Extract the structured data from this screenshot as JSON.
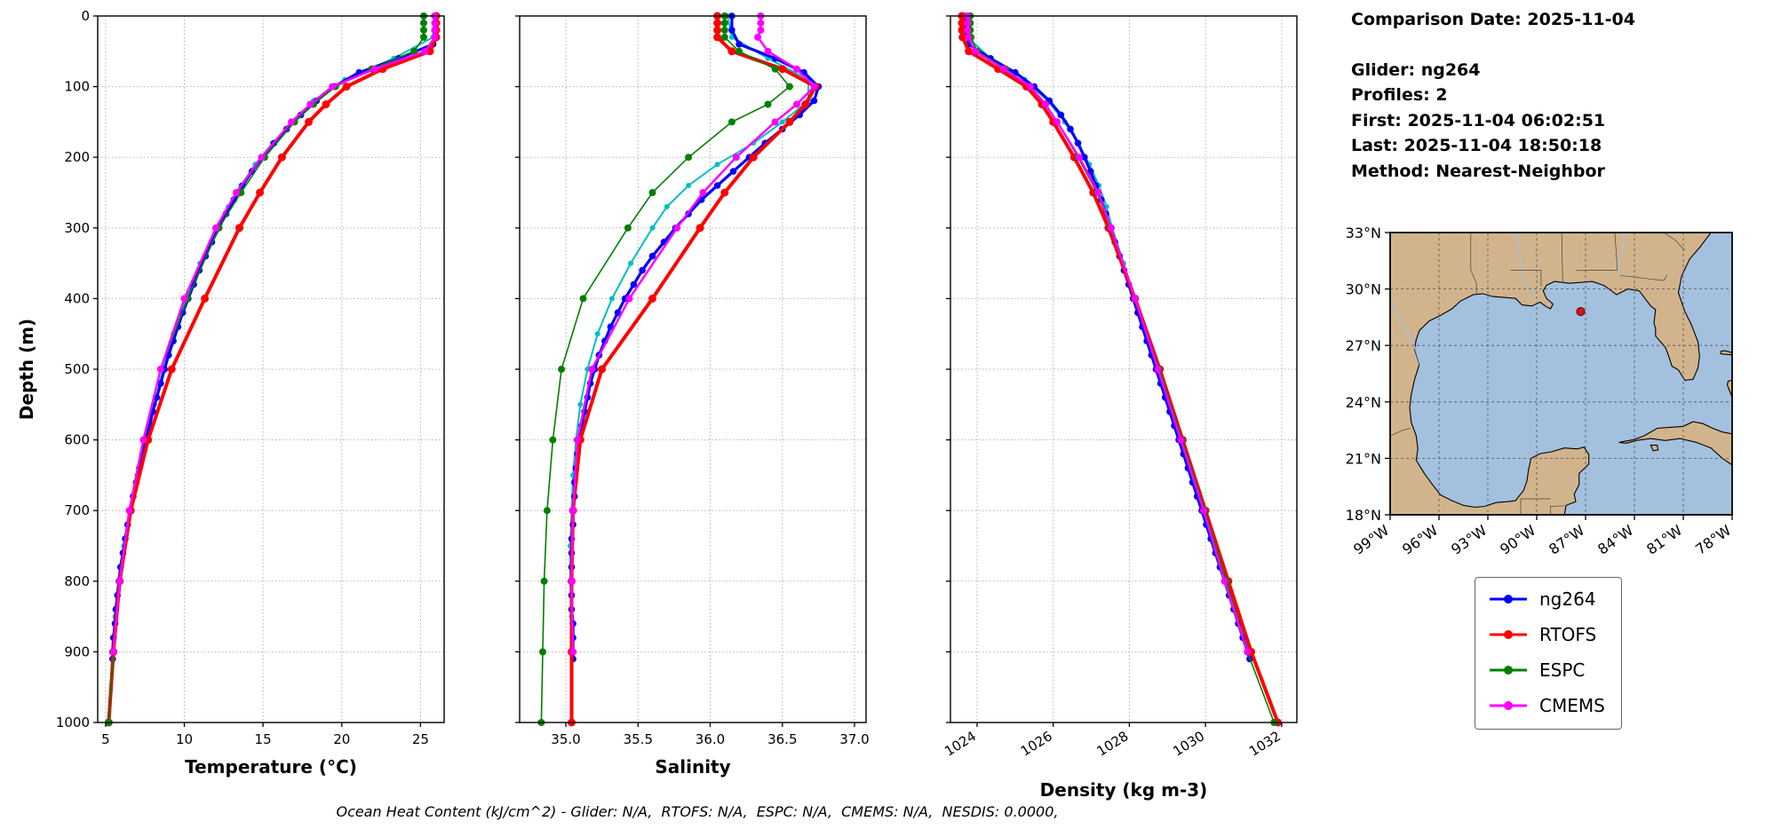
{
  "header": {
    "comparison_date": "Comparison Date: 2025-11-04",
    "glider": "Glider: ng264",
    "profiles": "Profiles: 2",
    "first": "First: 2025-11-04 06:02:51",
    "last": "Last: 2025-11-04 18:50:18",
    "method": "Method: Nearest-Neighbor"
  },
  "caption": "Ocean Heat Content (kJ/cm^2) - Glider: N/A,  RTOFS: N/A,  ESPC: N/A,  CMEMS: N/A,  NESDIS: 0.0000,",
  "legend": {
    "items": [
      {
        "label": "ng264",
        "color": "#0000ff"
      },
      {
        "label": "RTOFS",
        "color": "#ff0000"
      },
      {
        "label": "ESPC",
        "color": "#008000"
      },
      {
        "label": "CMEMS",
        "color": "#ff00ff"
      }
    ]
  },
  "map": {
    "extent": {
      "lon_min": -99,
      "lon_max": -78,
      "lat_min": 18,
      "lat_max": 33
    },
    "lon_ticks": [
      -99,
      -96,
      -93,
      -90,
      -87,
      -84,
      -81,
      -78
    ],
    "lon_labels": [
      "99°W",
      "96°W",
      "93°W",
      "90°W",
      "87°W",
      "84°W",
      "81°W",
      "78°W"
    ],
    "lat_ticks": [
      33,
      30,
      27,
      24,
      21,
      18
    ],
    "lat_labels": [
      "33°N",
      "30°N",
      "27°N",
      "24°N",
      "21°N",
      "18°N"
    ],
    "marker": {
      "lon": -87.3,
      "lat": 28.8,
      "color": "#dd1111"
    },
    "land_color": "#d2b48c",
    "ocean_color": "#a3c0de"
  },
  "chart_data": {
    "type": "line",
    "depth_axis": {
      "label": "Depth (m)",
      "lim": [
        0,
        1000
      ],
      "ticks": [
        0,
        100,
        200,
        300,
        400,
        500,
        600,
        700,
        800,
        900,
        1000
      ]
    },
    "panels": [
      {
        "xlabel": "Temperature (°C)",
        "key": "temperature",
        "xlim": [
          4.5,
          26.5
        ],
        "xticks": [
          5,
          10,
          15,
          20,
          25
        ],
        "xtick_labels": [
          "5",
          "10",
          "15",
          "20",
          "25"
        ],
        "rotate_xticklabels": false,
        "show_ytick_labels": true
      },
      {
        "xlabel": "Salinity",
        "key": "salinity",
        "xlim": [
          34.68,
          37.08
        ],
        "xticks": [
          35.0,
          35.5,
          36.0,
          36.5,
          37.0
        ],
        "xtick_labels": [
          "35.0",
          "35.5",
          "36.0",
          "36.5",
          "37.0"
        ],
        "rotate_xticklabels": false,
        "show_ytick_labels": false
      },
      {
        "xlabel": "Density (kg m-3)",
        "key": "density",
        "xlim": [
          1023.3,
          1032.4
        ],
        "xticks": [
          1024,
          1026,
          1028,
          1030,
          1032
        ],
        "xtick_labels": [
          "1024",
          "1026",
          "1028",
          "1030",
          "1032"
        ],
        "rotate_xticklabels": true,
        "show_ytick_labels": false
      }
    ],
    "depths": {
      "glider": [
        0,
        20,
        40,
        60,
        80,
        100,
        120,
        140,
        160,
        180,
        200,
        220,
        240,
        260,
        280,
        300,
        320,
        340,
        360,
        380,
        400,
        420,
        440,
        460,
        480,
        500,
        520,
        540,
        560,
        580,
        600,
        620,
        640,
        660,
        680,
        700,
        720,
        740,
        760,
        780,
        800,
        820,
        840,
        860,
        880,
        900,
        910
      ],
      "glider2": [
        0,
        30,
        60,
        90,
        120,
        150,
        180,
        210,
        240,
        270,
        300,
        350,
        400,
        450,
        500,
        550,
        600,
        650,
        700,
        750,
        800,
        850,
        900
      ],
      "model": [
        0,
        10,
        20,
        30,
        50,
        75,
        100,
        125,
        150,
        200,
        250,
        300,
        400,
        500,
        600,
        700,
        800,
        900,
        1000
      ],
      "model900": [
        0,
        10,
        20,
        30,
        50,
        75,
        100,
        125,
        150,
        200,
        250,
        300,
        400,
        500,
        600,
        700,
        800,
        900
      ]
    },
    "series": [
      {
        "name": "ng264-profile2",
        "color": "#00bfbf",
        "depth_key": "glider2",
        "lw": 2,
        "ms": 3,
        "in_legend": false,
        "temperature": [
          25.85,
          25.8,
          23.3,
          20.2,
          18.2,
          16.9,
          15.6,
          14.5,
          13.6,
          12.8,
          12.05,
          11.0,
          10.1,
          9.3,
          8.65,
          8.1,
          7.5,
          7.0,
          6.55,
          6.15,
          5.8,
          5.6,
          5.45
        ],
        "salinity": [
          36.12,
          36.15,
          36.4,
          36.68,
          36.68,
          36.5,
          36.3,
          36.05,
          35.85,
          35.7,
          35.6,
          35.45,
          35.32,
          35.22,
          35.15,
          35.1,
          35.07,
          35.05,
          35.04,
          35.03,
          35.03,
          35.04,
          35.05
        ],
        "density": [
          1023.72,
          1023.75,
          1024.35,
          1025.25,
          1025.85,
          1026.3,
          1026.65,
          1026.95,
          1027.2,
          1027.4,
          1027.55,
          1027.85,
          1028.15,
          1028.45,
          1028.75,
          1029.05,
          1029.35,
          1029.65,
          1029.95,
          1030.25,
          1030.55,
          1030.85,
          1031.15
        ]
      },
      {
        "name": "ng264",
        "color": "#0000ff",
        "depth_key": "glider",
        "lw": 3.2,
        "ms": 3.8,
        "in_legend": true,
        "temperature": [
          25.9,
          25.9,
          25.8,
          23.6,
          21.1,
          19.5,
          18.4,
          17.4,
          16.5,
          15.7,
          14.95,
          14.3,
          13.7,
          13.15,
          12.65,
          12.2,
          11.75,
          11.35,
          10.95,
          10.6,
          10.25,
          9.9,
          9.6,
          9.3,
          9.0,
          8.75,
          8.5,
          8.25,
          8.0,
          7.8,
          7.55,
          7.35,
          7.15,
          6.95,
          6.75,
          6.6,
          6.4,
          6.25,
          6.1,
          5.95,
          5.85,
          5.75,
          5.65,
          5.6,
          5.5,
          5.45,
          5.45
        ],
        "salinity": [
          36.15,
          36.15,
          36.2,
          36.45,
          36.65,
          36.75,
          36.72,
          36.62,
          36.5,
          36.38,
          36.27,
          36.16,
          36.05,
          35.94,
          35.85,
          35.76,
          35.68,
          35.6,
          35.53,
          35.47,
          35.41,
          35.36,
          35.31,
          35.27,
          35.23,
          35.2,
          35.17,
          35.15,
          35.13,
          35.11,
          35.1,
          35.08,
          35.07,
          35.06,
          35.06,
          35.05,
          35.05,
          35.04,
          35.04,
          35.04,
          35.04,
          35.04,
          35.04,
          35.05,
          35.05,
          35.05,
          35.05
        ],
        "density": [
          1023.7,
          1023.7,
          1023.78,
          1024.35,
          1025.0,
          1025.5,
          1025.9,
          1026.2,
          1026.45,
          1026.65,
          1026.82,
          1026.98,
          1027.12,
          1027.26,
          1027.38,
          1027.5,
          1027.62,
          1027.74,
          1027.86,
          1027.98,
          1028.1,
          1028.22,
          1028.34,
          1028.46,
          1028.58,
          1028.7,
          1028.82,
          1028.94,
          1029.06,
          1029.18,
          1029.3,
          1029.42,
          1029.54,
          1029.66,
          1029.78,
          1029.9,
          1030.02,
          1030.14,
          1030.26,
          1030.38,
          1030.5,
          1030.62,
          1030.74,
          1030.86,
          1030.98,
          1031.1,
          1031.16
        ]
      },
      {
        "name": "RTOFS",
        "color": "#ff0000",
        "depth_key": "model",
        "lw": 4,
        "ms": 4.5,
        "in_legend": true,
        "temperature": [
          26.0,
          26.0,
          26.0,
          26.0,
          25.6,
          22.6,
          20.3,
          19.0,
          17.9,
          16.2,
          14.8,
          13.5,
          11.3,
          9.2,
          7.7,
          6.6,
          5.9,
          5.5,
          5.2
        ],
        "salinity": [
          36.05,
          36.05,
          36.05,
          36.05,
          36.15,
          36.5,
          36.73,
          36.66,
          36.55,
          36.3,
          36.1,
          35.93,
          35.6,
          35.25,
          35.1,
          35.05,
          35.04,
          35.04,
          35.04
        ],
        "density": [
          1023.6,
          1023.6,
          1023.6,
          1023.62,
          1023.78,
          1024.55,
          1025.3,
          1025.7,
          1026.0,
          1026.55,
          1027.05,
          1027.45,
          1028.15,
          1028.8,
          1029.4,
          1030.0,
          1030.6,
          1031.2,
          1031.9
        ]
      },
      {
        "name": "ESPC",
        "color": "#008000",
        "depth_key": "model",
        "lw": 1.6,
        "ms": 4,
        "in_legend": true,
        "temperature": [
          25.2,
          25.2,
          25.2,
          25.2,
          24.6,
          21.9,
          19.6,
          18.2,
          17.0,
          15.1,
          13.6,
          12.2,
          10.2,
          8.5,
          7.4,
          6.5,
          5.9,
          5.5,
          5.2
        ],
        "salinity": [
          36.1,
          36.1,
          36.1,
          36.1,
          36.2,
          36.45,
          36.55,
          36.4,
          36.15,
          35.85,
          35.6,
          35.43,
          35.12,
          34.97,
          34.91,
          34.87,
          34.85,
          34.84,
          34.83
        ],
        "density": [
          1023.82,
          1023.82,
          1023.82,
          1023.84,
          1024.0,
          1024.75,
          1025.4,
          1025.8,
          1026.1,
          1026.65,
          1027.15,
          1027.5,
          1028.15,
          1028.78,
          1029.38,
          1029.98,
          1030.55,
          1031.1,
          1031.8
        ]
      },
      {
        "name": "CMEMS",
        "color": "#ff00ff",
        "depth_key": "model900",
        "lw": 2.5,
        "ms": 4,
        "in_legend": true,
        "temperature": [
          25.9,
          25.9,
          25.9,
          25.9,
          25.3,
          22.1,
          19.4,
          18.0,
          16.8,
          14.9,
          13.3,
          12.0,
          10.0,
          8.5,
          7.4,
          6.5,
          5.9,
          5.5
        ],
        "salinity": [
          36.35,
          36.35,
          36.35,
          36.33,
          36.4,
          36.6,
          36.72,
          36.6,
          36.45,
          36.18,
          35.95,
          35.77,
          35.44,
          35.18,
          35.08,
          35.05,
          35.04,
          35.05
        ],
        "density": [
          1023.75,
          1023.75,
          1023.75,
          1023.77,
          1023.95,
          1024.7,
          1025.4,
          1025.8,
          1026.1,
          1026.68,
          1027.18,
          1027.52,
          1028.15,
          1028.75,
          1029.35,
          1029.95,
          1030.5,
          1031.1
        ]
      }
    ]
  }
}
